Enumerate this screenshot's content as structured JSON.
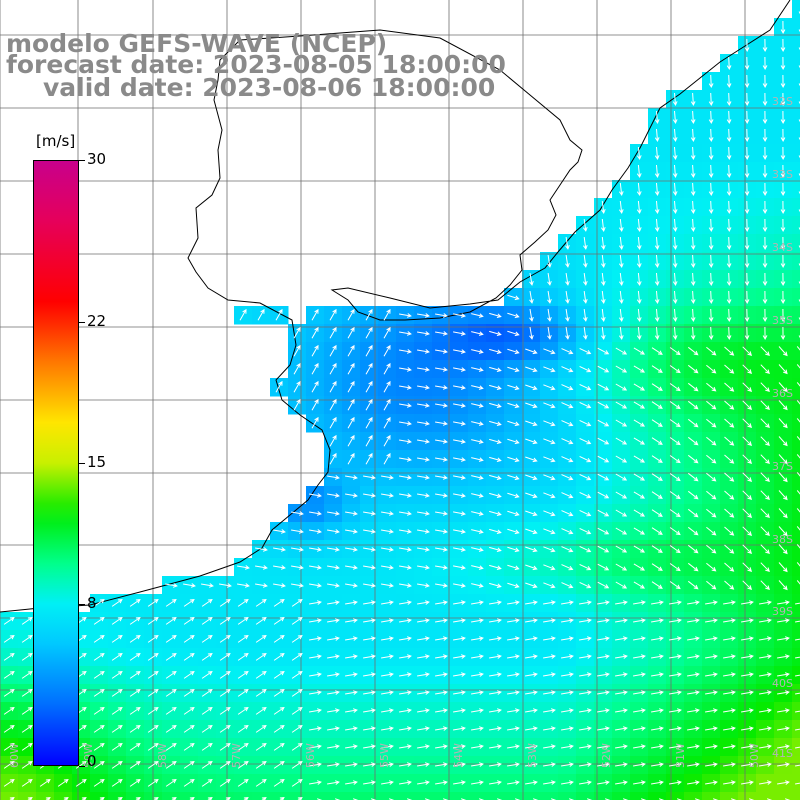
{
  "title": {
    "line1": "modelo GEFS-WAVE (NCEP)",
    "line2": "forecast date: 2023-08-05 18:00:00",
    "line3": "valid date: 2023-08-06 18:00:00"
  },
  "colorbar": {
    "units": "[m/s]",
    "ticks": [
      {
        "label": "30",
        "value": 30
      },
      {
        "label": "22",
        "value": 22
      },
      {
        "label": "15",
        "value": 15
      },
      {
        "label": "8",
        "value": 8
      },
      {
        "label": "0",
        "value": 0
      }
    ],
    "min": 0,
    "max": 30
  },
  "map": {
    "variable": "wind speed",
    "units": "m/s",
    "lon_labels": [
      "60W",
      "59W",
      "58W",
      "57W",
      "56W",
      "55W",
      "54W",
      "53W",
      "52W",
      "51W",
      "50W"
    ],
    "lat_labels": [
      "32S",
      "33S",
      "34S",
      "35S",
      "36S",
      "37S",
      "38S",
      "39S",
      "40S",
      "41S"
    ],
    "land_color": "#ffffff",
    "grid_color": "#6e6e6e",
    "coast_color": "#000000",
    "arrow_color": "#ffffff"
  }
}
